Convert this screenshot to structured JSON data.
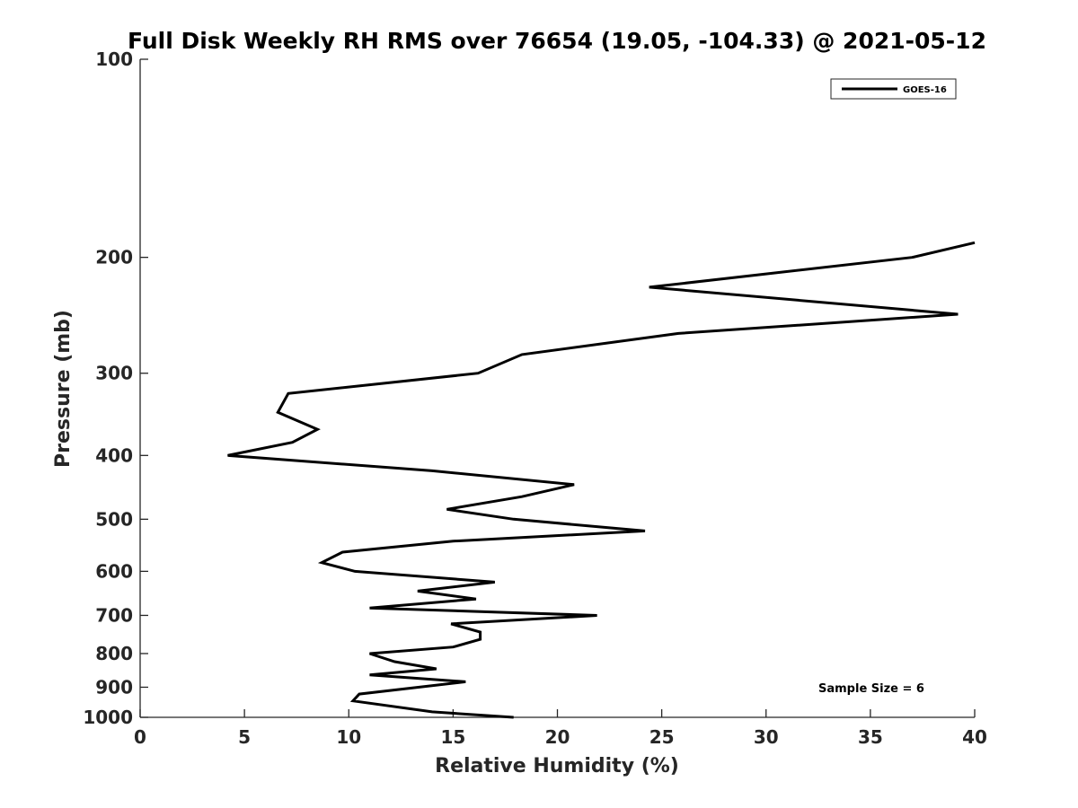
{
  "chart_data": {
    "type": "line",
    "title": "Full Disk Weekly RH RMS over 76654 (19.05, -104.33) @ 2021-05-12",
    "xlabel": "Relative Humidity (%)",
    "ylabel": "Pressure (mb)",
    "xlim": [
      0,
      40
    ],
    "ylim": [
      1000,
      100
    ],
    "yscale": "log",
    "y_reversed": true,
    "x_ticks": [
      "0",
      "5",
      "10",
      "15",
      "20",
      "25",
      "30",
      "35",
      "40"
    ],
    "y_ticks": [
      "100",
      "200",
      "300",
      "400",
      "500",
      "600",
      "700",
      "800",
      "900",
      "1000"
    ],
    "grid": false,
    "legend_position": "top-right",
    "annotation": "Sample Size = 6",
    "series": [
      {
        "name": "GOES-16",
        "color": "#000000",
        "points": [
          {
            "x": 40.0,
            "y": 190
          },
          {
            "x": 37.0,
            "y": 200
          },
          {
            "x": 24.4,
            "y": 222
          },
          {
            "x": 39.2,
            "y": 244
          },
          {
            "x": 25.8,
            "y": 261
          },
          {
            "x": 18.3,
            "y": 281
          },
          {
            "x": 16.2,
            "y": 300
          },
          {
            "x": 7.1,
            "y": 322
          },
          {
            "x": 6.6,
            "y": 344
          },
          {
            "x": 8.5,
            "y": 365
          },
          {
            "x": 7.3,
            "y": 382
          },
          {
            "x": 4.2,
            "y": 400
          },
          {
            "x": 14.0,
            "y": 422
          },
          {
            "x": 20.8,
            "y": 443
          },
          {
            "x": 18.3,
            "y": 462
          },
          {
            "x": 14.7,
            "y": 483
          },
          {
            "x": 17.9,
            "y": 500
          },
          {
            "x": 24.2,
            "y": 521
          },
          {
            "x": 15.0,
            "y": 540
          },
          {
            "x": 9.7,
            "y": 561
          },
          {
            "x": 8.7,
            "y": 582
          },
          {
            "x": 10.3,
            "y": 600
          },
          {
            "x": 17.0,
            "y": 623
          },
          {
            "x": 13.3,
            "y": 643
          },
          {
            "x": 16.1,
            "y": 661
          },
          {
            "x": 11.0,
            "y": 682
          },
          {
            "x": 21.9,
            "y": 700
          },
          {
            "x": 14.9,
            "y": 721
          },
          {
            "x": 16.3,
            "y": 742
          },
          {
            "x": 16.3,
            "y": 761
          },
          {
            "x": 15.0,
            "y": 782
          },
          {
            "x": 11.0,
            "y": 800
          },
          {
            "x": 12.2,
            "y": 823
          },
          {
            "x": 14.2,
            "y": 844
          },
          {
            "x": 11.0,
            "y": 862
          },
          {
            "x": 15.6,
            "y": 883
          },
          {
            "x": 10.5,
            "y": 922
          },
          {
            "x": 10.2,
            "y": 944
          },
          {
            "x": 14.0,
            "y": 981
          },
          {
            "x": 17.9,
            "y": 1000
          }
        ]
      }
    ]
  }
}
